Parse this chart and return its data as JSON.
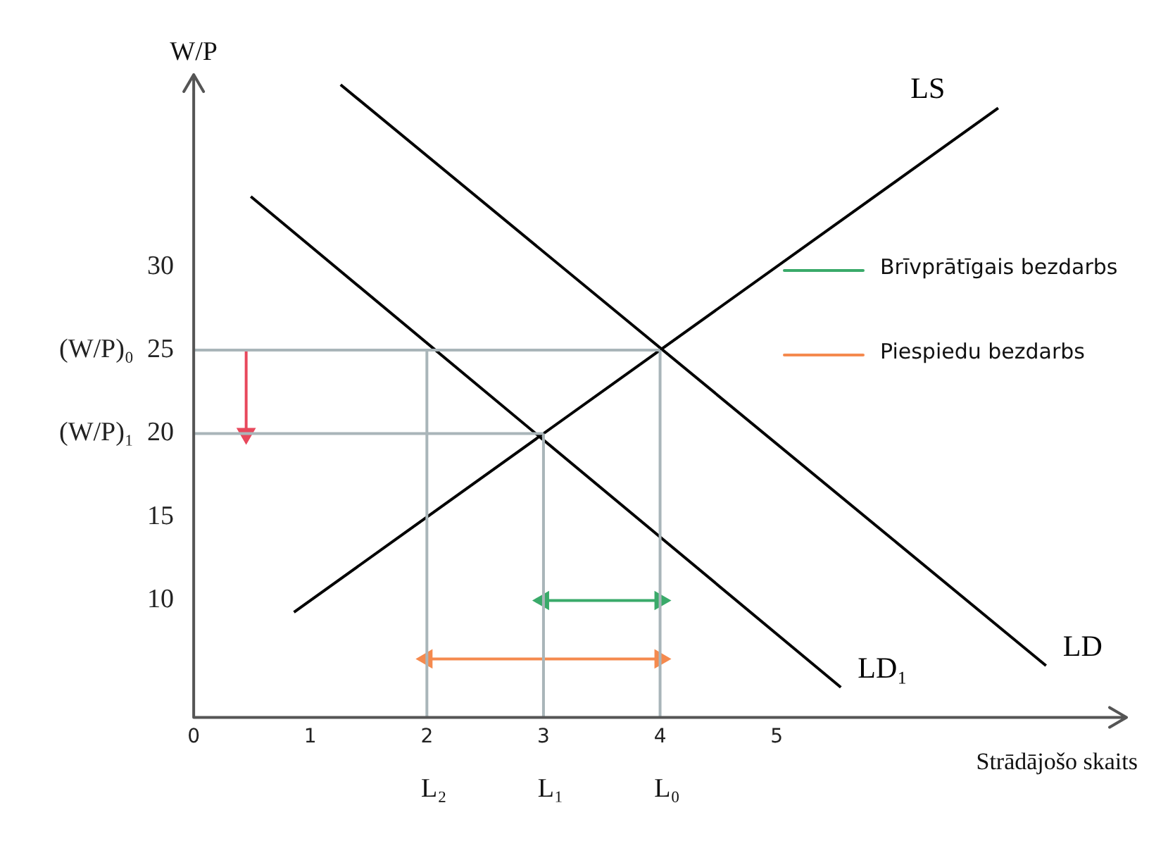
{
  "chart_data": {
    "type": "line",
    "xlabel": "Strādājošo skaits",
    "ylabel": "W/P",
    "xlim": [
      0,
      8
    ],
    "xticks": [
      0,
      1,
      2,
      3,
      4,
      5
    ],
    "annotations": [
      {
        "text": "L₂",
        "x": 2,
        "y": 3
      },
      {
        "text": "L₁",
        "x": 3,
        "y": 3
      },
      {
        "text": "L₀",
        "x": 4,
        "y": 3
      }
    ],
    "ylim": [
      3,
      41.5
    ],
    "yticks": [
      10,
      15,
      {
        "value": 20,
        "label": "(W/P)₁  20"
      },
      {
        "value": 25,
        "label": "(W/P)₀  25"
      },
      30
    ],
    "grid": false,
    "legend": "top right",
    "marker": "none",
    "series": [
      {
        "color": "#a9b5b9",
        "x": [
          0,
          4
        ],
        "values": [
          25,
          25
        ]
      },
      {
        "color": "#a9b5b9",
        "x": [
          0,
          3
        ],
        "values": [
          20,
          20
        ]
      },
      {
        "color": "#a9b5b9",
        "x": [
          2,
          2
        ],
        "values": [
          3,
          25
        ]
      },
      {
        "color": "#a9b5b9",
        "x": [
          3,
          3
        ],
        "values": [
          3,
          20
        ]
      },
      {
        "color": "#a9b5b9",
        "x": [
          4,
          4
        ],
        "values": [
          3,
          25
        ]
      },
      {
        "name": "LS",
        "color": "#000000",
        "x": [
          0.86,
          6.9
        ],
        "values": [
          9.3,
          39.5
        ]
      },
      {
        "name": "LD",
        "color": "#000000",
        "x": [
          1.26,
          7.31
        ],
        "values": [
          40.9,
          6.1
        ]
      },
      {
        "name": "LD₁",
        "color": "#000000",
        "x": [
          0.49,
          5.55
        ],
        "values": [
          34.2,
          4.8
        ]
      },
      {
        "color": "#e8485c",
        "x": [
          0.45,
          0.45
        ],
        "values": [
          25,
          20
        ],
        "marker": "triangle"
      },
      {
        "name": "Brīvprātīgais bezdarbs",
        "color": "#3aaa6a",
        "x": [
          3,
          4
        ],
        "values": [
          10,
          10
        ],
        "marker": "triangle"
      },
      {
        "name": "Piespiedu bezdarbs",
        "color": "#f58a4e",
        "x": [
          2,
          4
        ],
        "values": [
          6.5,
          6.5
        ],
        "marker": "triangle"
      }
    ]
  }
}
